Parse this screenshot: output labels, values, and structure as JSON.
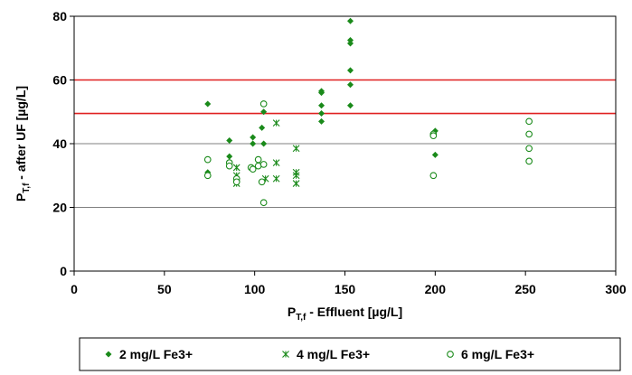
{
  "colors": {
    "series": "#1a8a1a",
    "ref_line": "#e02020",
    "grid": "#808080"
  },
  "chart_data": {
    "type": "scatter",
    "title": "",
    "xlabel": {
      "main": "P",
      "sub": "T,f",
      "rest": " - Effluent [µg/L]"
    },
    "ylabel": {
      "main": "P",
      "sub": "T,f",
      "rest": " - after UF [µg/L]"
    },
    "xlim": [
      0,
      300
    ],
    "ylim": [
      0,
      80
    ],
    "xticks": [
      "0",
      "50",
      "100",
      "150",
      "200",
      "250",
      "300"
    ],
    "yticks": [
      "0",
      "20",
      "40",
      "60",
      "80"
    ],
    "grid_y": [
      20,
      40
    ],
    "reference_lines_y": [
      60,
      49.5
    ],
    "legend_position": "bottom",
    "series": [
      {
        "name": "2 mg/L Fe3+",
        "marker": "diamond",
        "x": [
          74,
          74,
          86,
          86,
          99,
          99,
          104,
          105,
          105,
          137,
          137,
          137,
          137,
          137,
          153,
          153,
          153,
          153,
          153,
          153,
          200,
          200
        ],
        "y": [
          52.5,
          31,
          41,
          36,
          42,
          40,
          45,
          50,
          40,
          56.5,
          56,
          52,
          49.5,
          47,
          78.5,
          72.5,
          71.5,
          63,
          58.5,
          52,
          44,
          36.5
        ]
      },
      {
        "name": "4 mg/L Fe3+",
        "marker": "star",
        "x": [
          90,
          90,
          90,
          106,
          112,
          112,
          112,
          123,
          123,
          123,
          123
        ],
        "y": [
          32.5,
          30,
          27.5,
          29,
          46.5,
          34,
          29,
          38.5,
          31,
          30,
          27.5
        ]
      },
      {
        "name": "6 mg/L Fe3+",
        "marker": "circle",
        "x": [
          74,
          74,
          86,
          86,
          90,
          90,
          98,
          99,
          102,
          102,
          104,
          105,
          105,
          105,
          199,
          199,
          199,
          252,
          252,
          252,
          252
        ],
        "y": [
          35,
          30,
          34,
          33,
          29,
          28,
          32.5,
          32,
          35,
          33,
          28,
          52.5,
          33.5,
          21.5,
          43,
          42.5,
          30,
          47,
          43,
          38.5,
          34.5
        ]
      }
    ]
  }
}
